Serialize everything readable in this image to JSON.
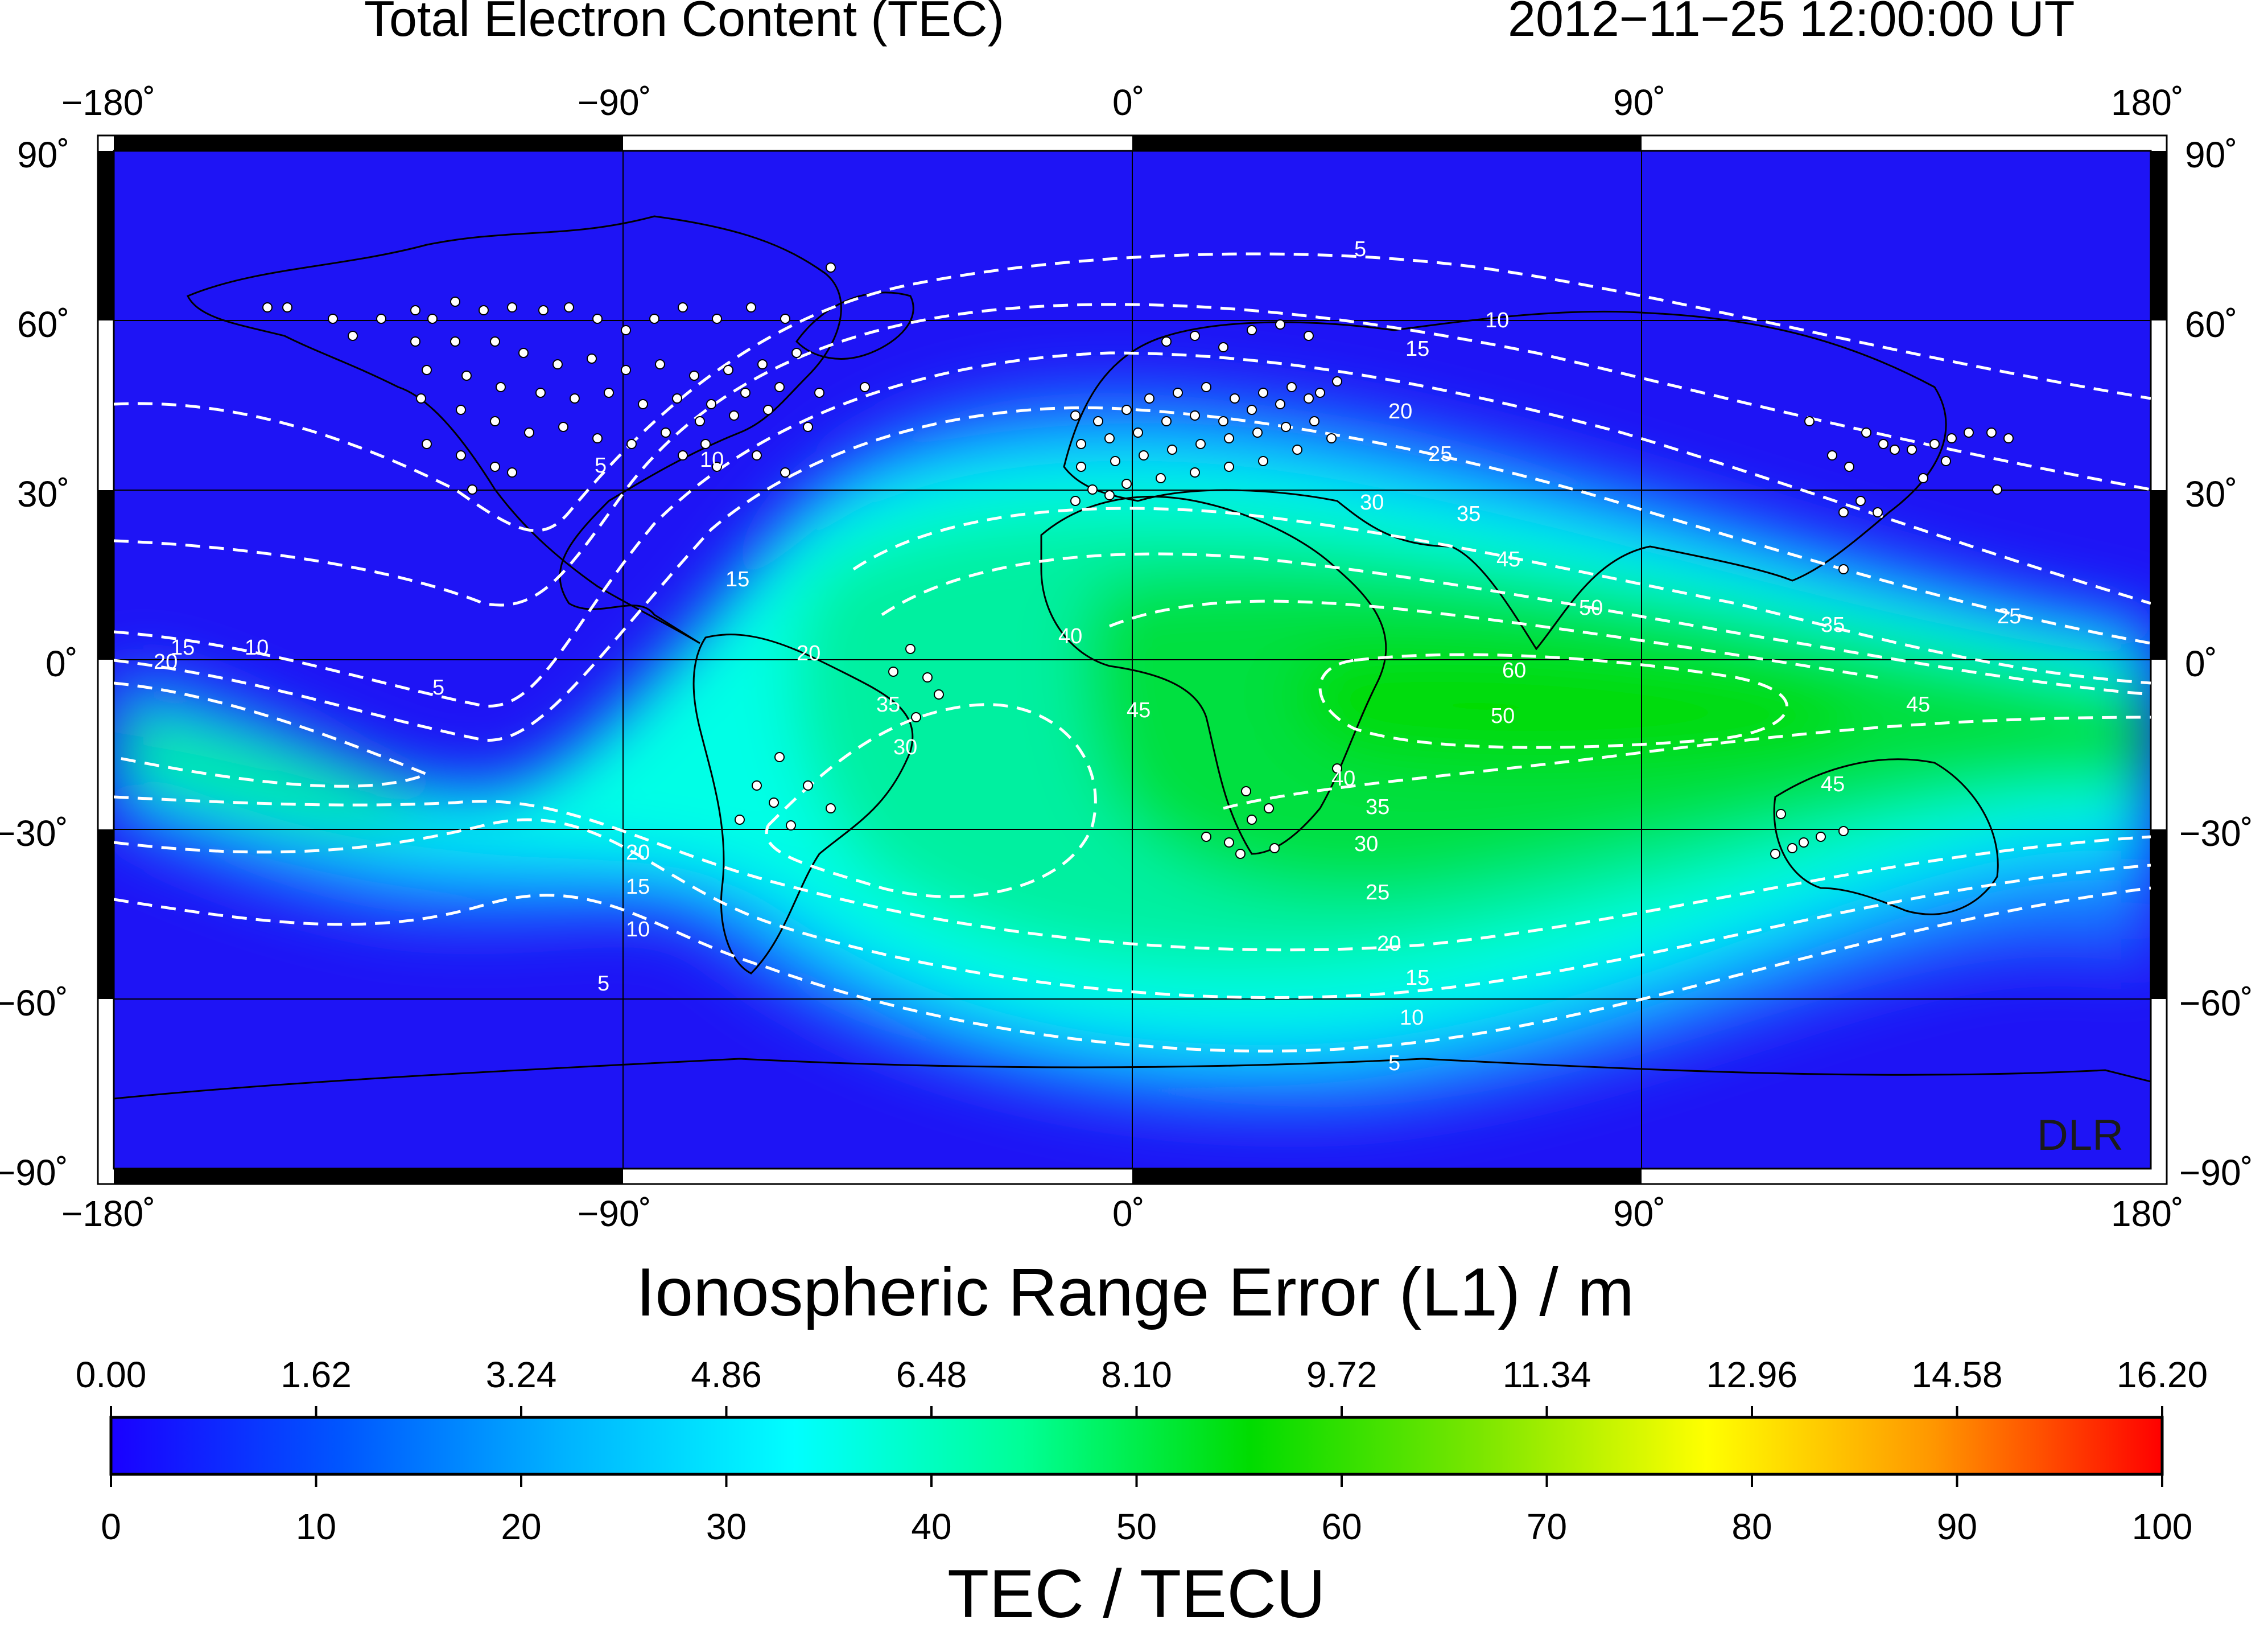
{
  "header": {
    "title": "Total Electron Content (TEC)",
    "timestamp": "2012−11−25  12:00:00 UT"
  },
  "map": {
    "lon_ticks": [
      "−180˚",
      "−90˚",
      "0˚",
      "90˚",
      "180˚"
    ],
    "lat_ticks": [
      "90˚",
      "60˚",
      "30˚",
      "0˚",
      "−30˚",
      "−60˚",
      "−90˚"
    ],
    "watermark": "DLR",
    "contour_levels": [
      5,
      10,
      15,
      20,
      25,
      30,
      35,
      40,
      45,
      50,
      60
    ],
    "contour_color": "#ffffff",
    "station_color": "#ffffff"
  },
  "colorbar": {
    "top_title": "Ionospheric Range Error (L1) / m",
    "top_ticks": [
      "0.00",
      "1.62",
      "3.24",
      "4.86",
      "6.48",
      "8.10",
      "9.72",
      "11.34",
      "12.96",
      "14.58",
      "16.20"
    ],
    "bottom_ticks": [
      "0",
      "10",
      "20",
      "30",
      "40",
      "50",
      "60",
      "70",
      "80",
      "90",
      "100"
    ],
    "bottom_title": "TEC / TECU",
    "colors": [
      "#1a00ff",
      "#0055ff",
      "#00b4ff",
      "#00ffff",
      "#00ff96",
      "#00dc00",
      "#7ae600",
      "#ffff00",
      "#ff9600",
      "#ff0000"
    ]
  },
  "chart_data": {
    "type": "heatmap",
    "title": "Total Electron Content (TEC)",
    "subtitle": "2012−11−25  12:00:00 UT",
    "x_range": [
      -180,
      180
    ],
    "y_range": [
      -90,
      90
    ],
    "value_range": [
      0,
      100
    ],
    "value_label": "TEC / TECU",
    "secondary_label": "Ionospheric Range Error (L1) / m",
    "secondary_range": [
      0,
      16.2
    ],
    "peak_value": 60,
    "peak_location": [
      60,
      -5
    ],
    "contour_levels": [
      5,
      10,
      15,
      20,
      25,
      30,
      35,
      40,
      45,
      50,
      60
    ]
  }
}
